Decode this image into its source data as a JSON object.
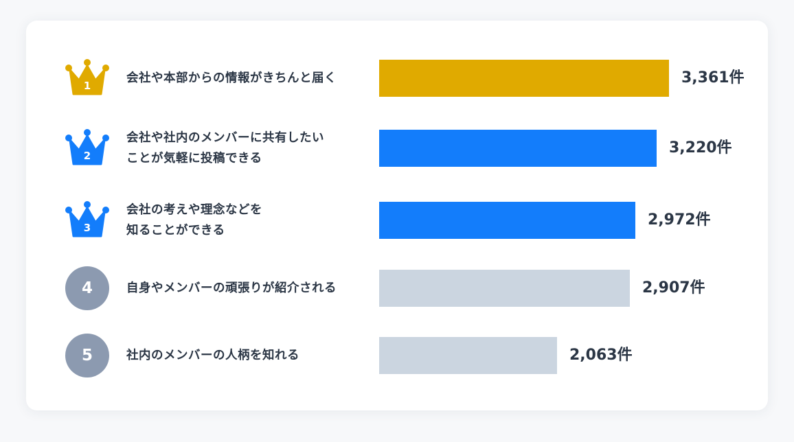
{
  "colors": {
    "gold": "#e0aa00",
    "blue": "#137dfb",
    "gray_bar": "#cbd5e0",
    "gray_circle": "#8c9ab0"
  },
  "chart_data": {
    "type": "bar",
    "orientation": "horizontal",
    "unit": "件",
    "xlim": [
      0,
      3600
    ],
    "rows": [
      {
        "rank": "1",
        "rank_style": "crown-gold",
        "bar_color": "#e0aa00",
        "label_lines": [
          "会社や本部からの情報がきちんと届く"
        ],
        "value": 3361,
        "value_label": "3,361件"
      },
      {
        "rank": "2",
        "rank_style": "crown-blue",
        "bar_color": "#137dfb",
        "label_lines": [
          "会社や社内のメンバーに共有したい",
          "ことが気軽に投稿できる"
        ],
        "value": 3220,
        "value_label": "3,220件"
      },
      {
        "rank": "3",
        "rank_style": "crown-blue",
        "bar_color": "#137dfb",
        "label_lines": [
          "会社の考えや理念などを",
          "知ることができる"
        ],
        "value": 2972,
        "value_label": "2,972件"
      },
      {
        "rank": "4",
        "rank_style": "circle-gray",
        "bar_color": "#cbd5e0",
        "label_lines": [
          "自身やメンバーの頑張りが紹介される"
        ],
        "value": 2907,
        "value_label": "2,907件"
      },
      {
        "rank": "5",
        "rank_style": "circle-gray",
        "bar_color": "#cbd5e0",
        "label_lines": [
          "社内のメンバーの人柄を知れる"
        ],
        "value": 2063,
        "value_label": "2,063件"
      }
    ]
  }
}
